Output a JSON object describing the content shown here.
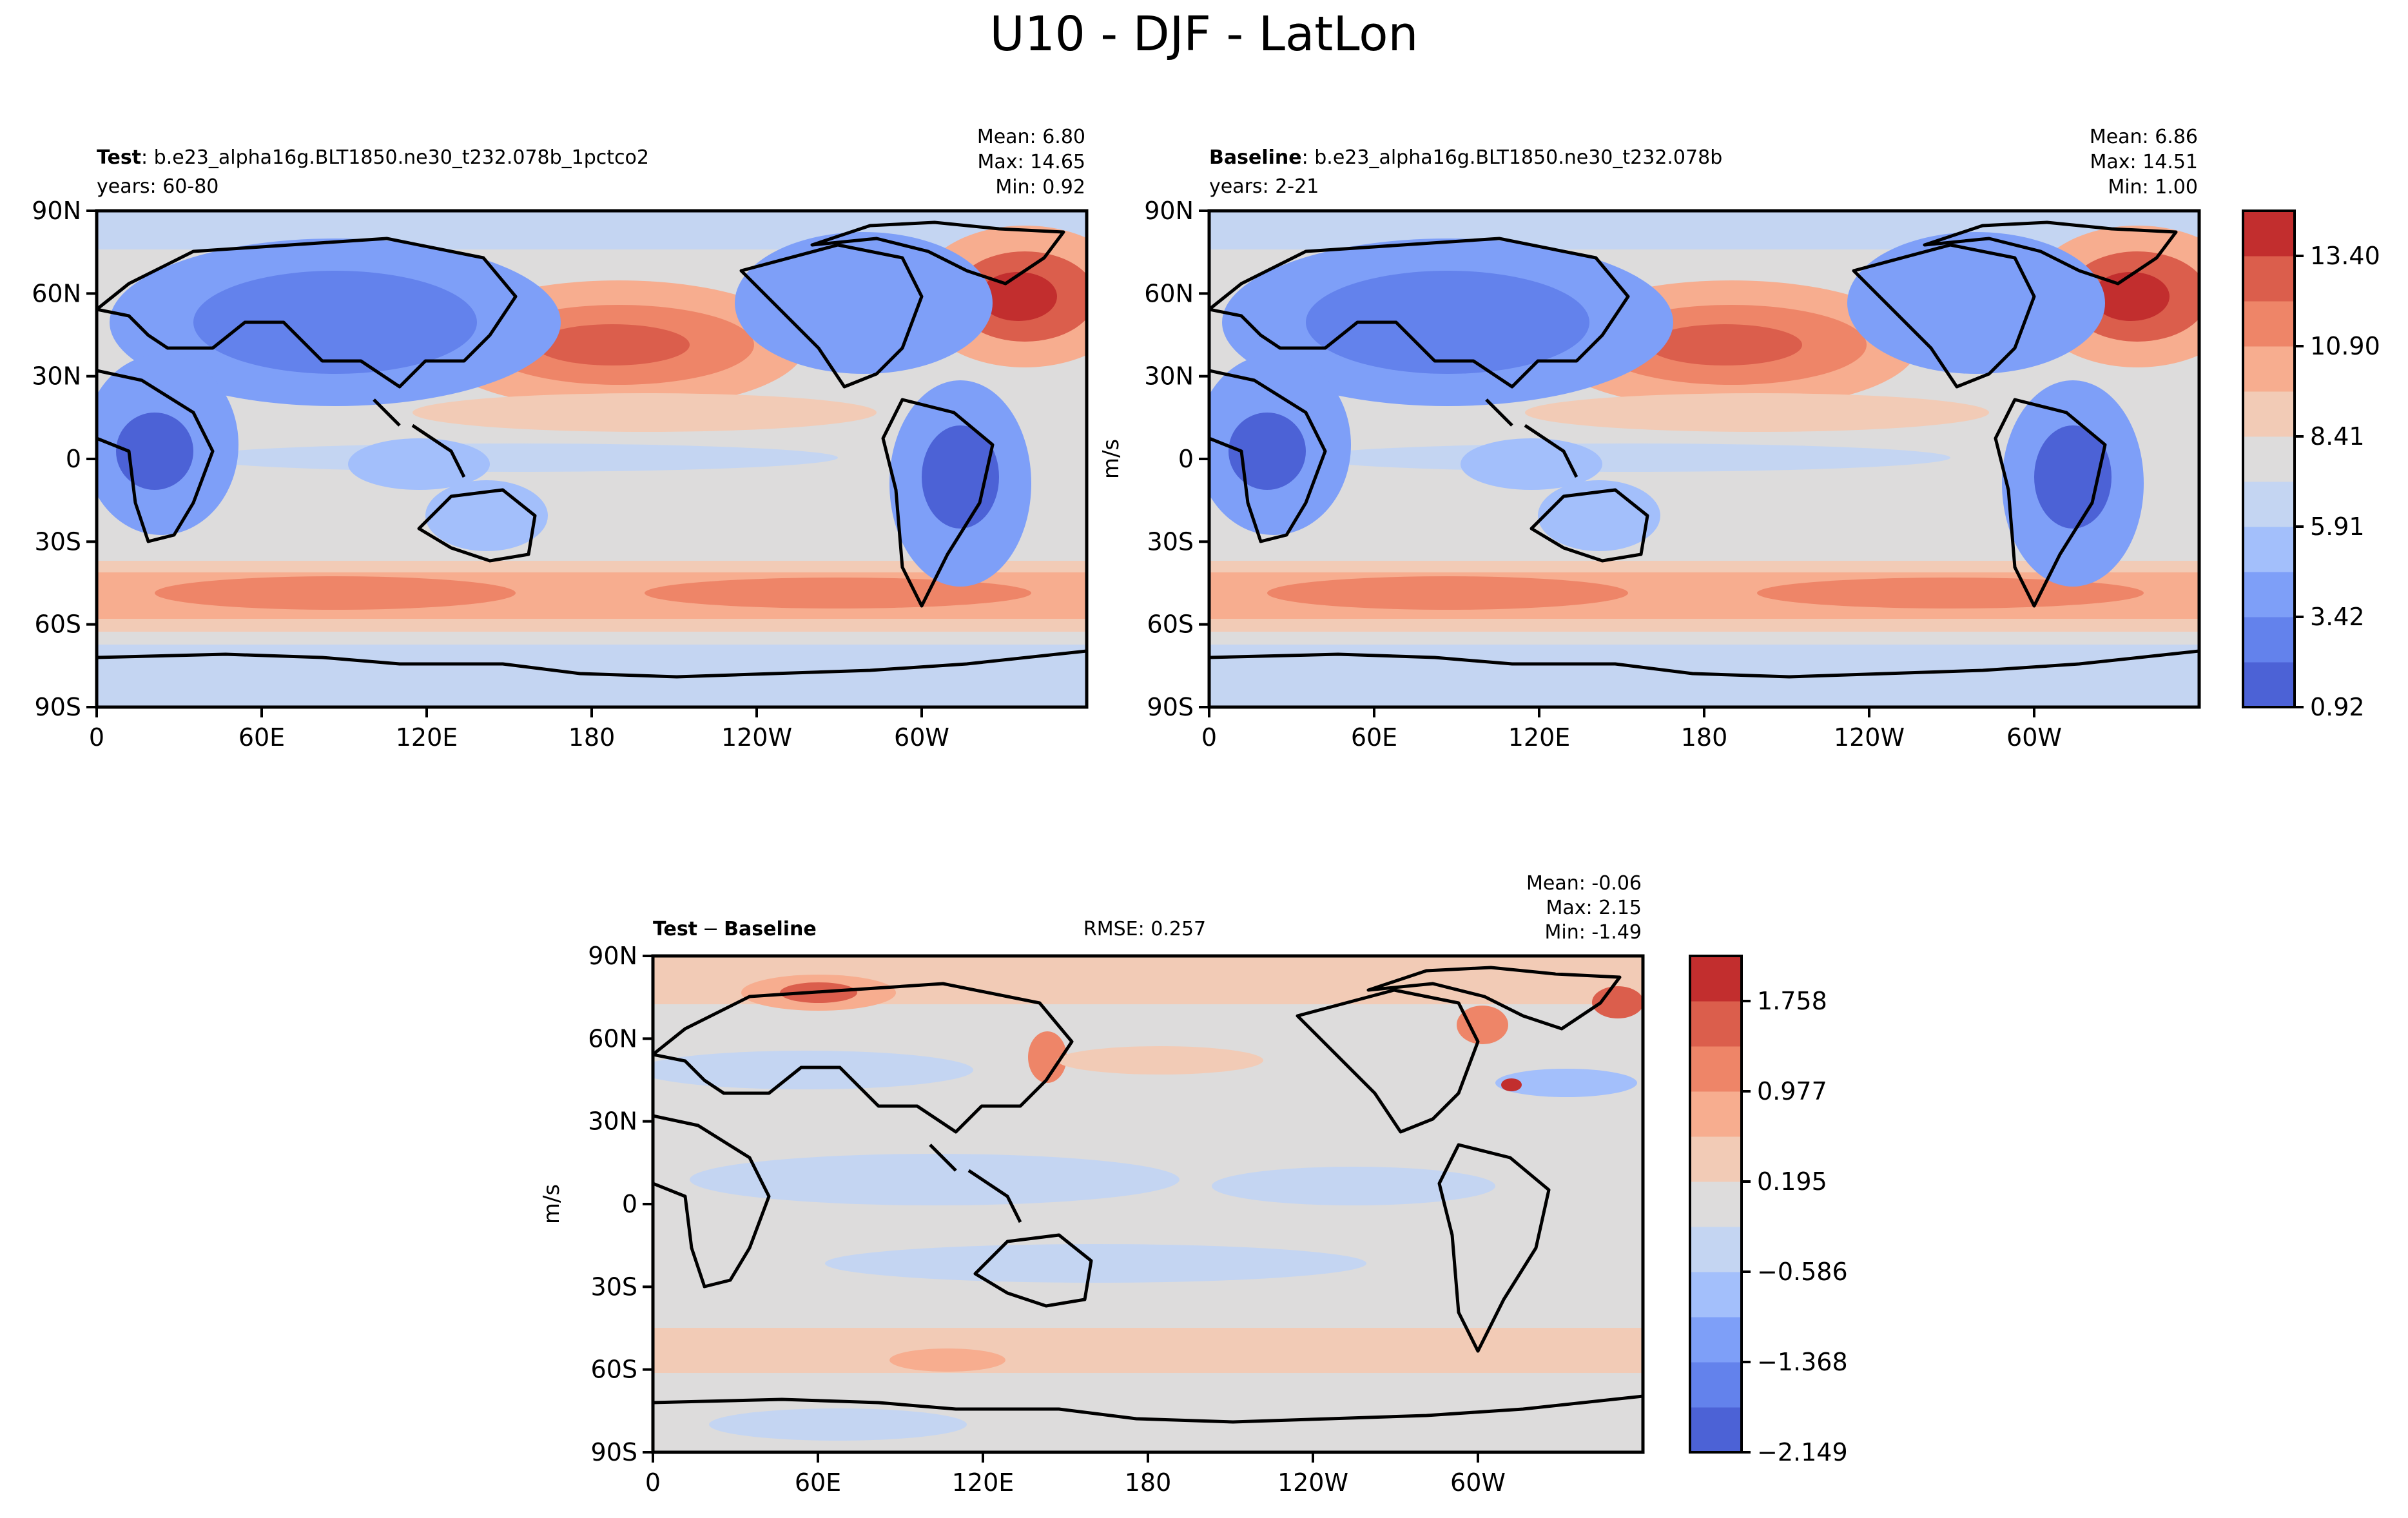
{
  "figure": {
    "title": "U10 - DJF - LatLon"
  },
  "colors": {
    "cmap": [
      "#4c62d6",
      "#6382ec",
      "#7e9ff8",
      "#a3bffb",
      "#c4d5f2",
      "#dddcdc",
      "#f2cbb6",
      "#f7ad8f",
      "#ee8568",
      "#db5e4c",
      "#c22e2e"
    ],
    "coast": "#000000"
  },
  "chart_data": [
    {
      "type": "heatmap",
      "panel": "test",
      "label_bold": "Test",
      "label_rest": ": b.e23_alpha16g.BLT1850.ne30_t232.078b_1pctco2",
      "subtitle": "years: 60-80",
      "stats": [
        "Mean:  6.80",
        "Max: 14.65",
        "Min:  0.92"
      ],
      "x_ticks": [
        "0",
        "60E",
        "120E",
        "180",
        "120W",
        "60W"
      ],
      "y_ticks": [
        "90N",
        "60N",
        "30N",
        "0",
        "30S",
        "60S",
        "90S"
      ],
      "ylim": [
        -90,
        90
      ],
      "xlim": [
        0,
        360
      ],
      "ylabel": "",
      "variable": "U10",
      "units": "m/s",
      "range": [
        0.92,
        14.65
      ],
      "mean": 6.8
    },
    {
      "type": "heatmap",
      "panel": "baseline",
      "label_bold": "Baseline",
      "label_rest": ": b.e23_alpha16g.BLT1850.ne30_t232.078b",
      "subtitle": "years: 2-21",
      "stats": [
        "Mean:  6.86",
        "Max: 14.51",
        "Min:  1.00"
      ],
      "x_ticks": [
        "0",
        "60E",
        "120E",
        "180",
        "120W",
        "60W"
      ],
      "y_ticks": [
        "90N",
        "60N",
        "30N",
        "0",
        "30S",
        "60S",
        "90S"
      ],
      "ylim": [
        -90,
        90
      ],
      "xlim": [
        0,
        360
      ],
      "ylabel": "m/s",
      "range": [
        1.0,
        14.51
      ],
      "mean": 6.86,
      "colorbar": {
        "labels": [
          "13.40",
          "10.90",
          "8.41",
          "5.91",
          "3.42",
          "0.92"
        ],
        "levels": 11
      }
    },
    {
      "type": "heatmap",
      "panel": "difference",
      "label_bold": "Test",
      "label_mid": "−",
      "label_bold2": "Baseline",
      "rmse": "RMSE: 0.257",
      "stats": [
        "Mean: -0.06",
        "Max:  2.15",
        "Min: -1.49"
      ],
      "x_ticks": [
        "0",
        "60E",
        "120E",
        "180",
        "120W",
        "60W"
      ],
      "y_ticks": [
        "90N",
        "60N",
        "30N",
        "0",
        "30S",
        "60S",
        "90S"
      ],
      "ylim": [
        -90,
        90
      ],
      "xlim": [
        0,
        360
      ],
      "ylabel": "m/s",
      "range": [
        -1.49,
        2.15
      ],
      "mean": -0.06,
      "colorbar": {
        "labels": [
          "1.758",
          "0.977",
          "0.195",
          "−0.586",
          "−1.368",
          "−2.149"
        ],
        "levels": 11
      }
    }
  ]
}
